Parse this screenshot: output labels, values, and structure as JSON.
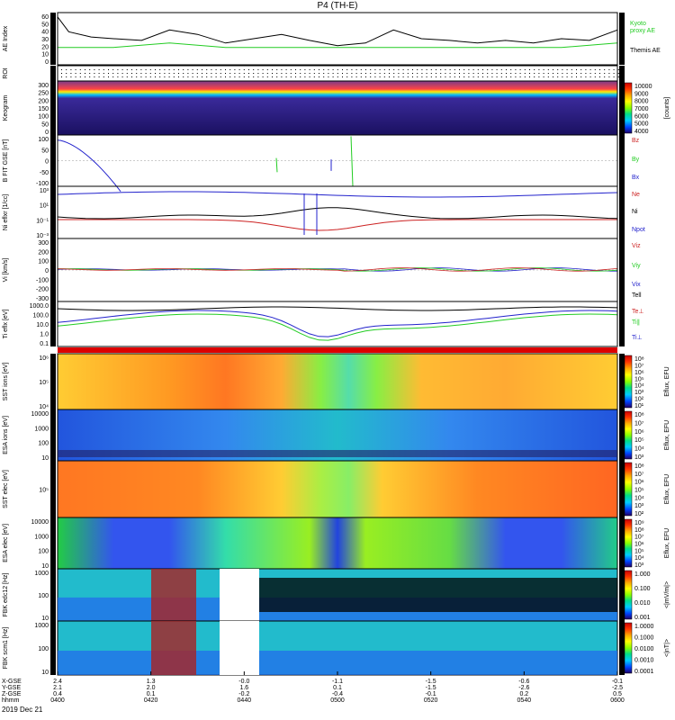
{
  "title": "P4 (TH-E)",
  "date": "2019 Dec 21",
  "chart_data": [
    {
      "type": "line",
      "ylabel": "AE Index",
      "yticks": [
        "60",
        "50",
        "40",
        "30",
        "20",
        "10",
        "0"
      ],
      "ylim": [
        0,
        60
      ],
      "series": [
        {
          "name": "Kyoto proxy AE",
          "color": "#22cc22",
          "x": [
            0,
            0.1,
            0.2,
            0.3,
            0.4,
            0.5,
            0.6,
            0.7,
            0.8,
            0.9,
            1.0
          ],
          "values": [
            20,
            20,
            25,
            20,
            20,
            20,
            20,
            20,
            20,
            20,
            25
          ]
        },
        {
          "name": "Themis AE",
          "color": "#000000",
          "x": [
            0,
            0.02,
            0.06,
            0.1,
            0.15,
            0.2,
            0.25,
            0.3,
            0.35,
            0.4,
            0.45,
            0.5,
            0.55,
            0.6,
            0.65,
            0.7,
            0.75,
            0.8,
            0.85,
            0.9,
            0.95,
            1.0
          ],
          "values": [
            55,
            38,
            32,
            30,
            28,
            40,
            35,
            25,
            30,
            35,
            28,
            22,
            25,
            40,
            30,
            28,
            25,
            28,
            25,
            30,
            28,
            40
          ]
        }
      ],
      "legend_lines": [
        "Kyoto",
        "proxy AE",
        "Themis AE"
      ]
    },
    {
      "type": "heatmap",
      "ylabel": "ROI",
      "yticks": []
    },
    {
      "type": "heatmap",
      "ylabel": "Keogram",
      "yticks": [
        "300",
        "250",
        "200",
        "150",
        "100",
        "50",
        "0"
      ],
      "colorbar": {
        "ticks": [
          "10000",
          "9000",
          "8000",
          "7000",
          "6000",
          "5000",
          "4000"
        ],
        "label": "[counts]"
      }
    },
    {
      "type": "line",
      "ylabel": "B FIT GSE [nT]",
      "yticks": [
        "100",
        "50",
        "0",
        "-50",
        "-100"
      ],
      "ylim": [
        -100,
        100
      ],
      "series": [
        {
          "name": "Bz",
          "color": "#cc2222"
        },
        {
          "name": "By",
          "color": "#22cc22"
        },
        {
          "name": "Bx",
          "color": "#2222cc"
        }
      ]
    },
    {
      "type": "line",
      "ylabel": "Ni eflxr [1/cc]",
      "yticks": [
        "10³",
        "10¹",
        "10⁻¹",
        "10⁻³"
      ],
      "series": [
        {
          "name": "Ne",
          "color": "#cc2222"
        },
        {
          "name": "Ni",
          "color": "#000000"
        },
        {
          "name": "Npot",
          "color": "#2222cc"
        }
      ]
    },
    {
      "type": "line",
      "ylabel": "Vi [km/s]",
      "yticks": [
        "300",
        "200",
        "100",
        "0",
        "-100",
        "-200",
        "-300"
      ],
      "ylim": [
        -300,
        300
      ],
      "series": [
        {
          "name": "Viz",
          "color": "#cc2222"
        },
        {
          "name": "Viy",
          "color": "#22cc22"
        },
        {
          "name": "Vix",
          "color": "#2222cc"
        },
        {
          "name": "Tell",
          "color": "#000000"
        }
      ]
    },
    {
      "type": "line",
      "ylabel": "Ti eflx [eV]",
      "yticks": [
        "1000.0",
        "100.0",
        "10.0",
        "1.0",
        "0.1"
      ],
      "series": [
        {
          "name": "Te⊥",
          "color": "#cc2222"
        },
        {
          "name": "Ti∥",
          "color": "#22cc22"
        },
        {
          "name": "Ti⊥",
          "color": "#2222cc"
        }
      ]
    },
    {
      "type": "heatmap",
      "ylabel": "SST ions [eV]",
      "yticks": [
        "10⁶",
        "10⁵",
        "10⁴"
      ],
      "colorbar": {
        "ticks": [
          "10⁸",
          "10⁷",
          "10⁶",
          "10⁵",
          "10⁴",
          "10³",
          "10²",
          "10¹"
        ],
        "label": "Eflux, EFU"
      }
    },
    {
      "type": "heatmap",
      "ylabel": "ESA ions [eV]",
      "yticks": [
        "10000",
        "1000",
        "100",
        "10"
      ],
      "colorbar": {
        "ticks": [
          "10⁸",
          "10⁷",
          "10⁶",
          "10⁵",
          "10⁴",
          "10³"
        ],
        "label": "Eflux, EFU"
      }
    },
    {
      "type": "heatmap",
      "ylabel": "SST elec [eV]",
      "yticks": [
        "10⁵"
      ],
      "colorbar": {
        "ticks": [
          "10⁸",
          "10⁷",
          "10⁶",
          "10⁵",
          "10⁴",
          "10³",
          "10²"
        ],
        "label": "Eflux, EFU"
      }
    },
    {
      "type": "heatmap",
      "ylabel": "ESA elec [eV]",
      "yticks": [
        "10000",
        "1000",
        "100",
        "10"
      ],
      "colorbar": {
        "ticks": [
          "10⁹",
          "10⁸",
          "10⁷",
          "10⁶",
          "10⁵",
          "10⁴",
          "10³"
        ],
        "label": "Eflux, EFU"
      }
    },
    {
      "type": "heatmap",
      "ylabel": "FBK edc12 [Hz]",
      "yticks": [
        "1000",
        "100",
        "10"
      ],
      "colorbar": {
        "ticks": [
          "1.000",
          "0.100",
          "0.010",
          "0.001"
        ],
        "label": "<|mV/m|>"
      }
    },
    {
      "type": "heatmap",
      "ylabel": "FBK scm1 [Hz]",
      "yticks": [
        "1000",
        "100",
        "10"
      ],
      "colorbar": {
        "ticks": [
          "1.0000",
          "0.1000",
          "0.0100",
          "0.0010",
          "0.0001"
        ],
        "label": "<|nT|>"
      }
    }
  ],
  "time_axis": {
    "row_labels": [
      "X-GSE",
      "Y-GSE",
      "Z-GSE",
      "hhmm"
    ],
    "ticks": [
      {
        "x": [
          "2.4",
          "2.1",
          "0.4",
          "0400"
        ]
      },
      {
        "x": [
          "1.3",
          "2.0",
          "0.1",
          "0420"
        ]
      },
      {
        "x": [
          "-0.0",
          "1.6",
          "-0.2",
          "0440"
        ]
      },
      {
        "x": [
          "-1.1",
          "0.1",
          "-0.4",
          "0500"
        ]
      },
      {
        "x": [
          "-1.5",
          "-1.5",
          "-0.1",
          "0520"
        ]
      },
      {
        "x": [
          "-0.6",
          "-2.6",
          "0.2",
          "0540"
        ]
      },
      {
        "x": [
          "-0.1",
          "-2.5",
          "0.5",
          "0600"
        ]
      }
    ]
  }
}
